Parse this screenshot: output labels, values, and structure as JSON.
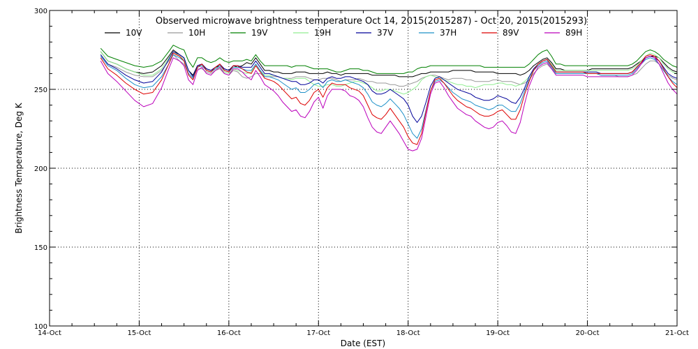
{
  "chart_data": {
    "type": "line",
    "title": "Observed microwave brightness temperature Oct 14, 2015(2015287) - Oct 20, 2015(2015293)",
    "xlabel": "Date (EST)",
    "ylabel": "Brightness Temperature, Deg K",
    "x_tick_labels": [
      "14-Oct",
      "15-Oct",
      "16-Oct",
      "17-Oct",
      "18-Oct",
      "19-Oct",
      "20-Oct",
      "21-Oct"
    ],
    "y_tick_labels": [
      "100",
      "150",
      "200",
      "250",
      "300"
    ],
    "xlim": [
      "2015-10-14",
      "2015-10-21"
    ],
    "ylim": [
      100,
      300
    ],
    "grid": true,
    "legend_position": "top",
    "x_unit": "days from 14-Oct",
    "x": [
      0.57,
      0.65,
      0.75,
      0.85,
      0.95,
      1.05,
      1.15,
      1.25,
      1.33,
      1.38,
      1.45,
      1.5,
      1.55,
      1.6,
      1.65,
      1.7,
      1.75,
      1.8,
      1.85,
      1.9,
      1.95,
      2.0,
      2.05,
      2.1,
      2.15,
      2.2,
      2.25,
      2.3,
      2.35,
      2.4,
      2.45,
      2.5,
      2.55,
      2.6,
      2.65,
      2.7,
      2.75,
      2.8,
      2.85,
      2.9,
      2.95,
      3.0,
      3.05,
      3.1,
      3.15,
      3.2,
      3.25,
      3.3,
      3.35,
      3.4,
      3.45,
      3.5,
      3.55,
      3.6,
      3.65,
      3.7,
      3.75,
      3.8,
      3.85,
      3.9,
      3.95,
      4.0,
      4.05,
      4.1,
      4.15,
      4.2,
      4.25,
      4.3,
      4.35,
      4.4,
      4.45,
      4.5,
      4.55,
      4.6,
      4.65,
      4.7,
      4.75,
      4.8,
      4.85,
      4.9,
      4.95,
      5.0,
      5.05,
      5.1,
      5.15,
      5.2,
      5.25,
      5.3,
      5.35,
      5.4,
      5.45,
      5.5,
      5.55,
      5.6,
      5.65,
      5.7,
      5.75,
      5.8,
      5.85,
      5.9,
      5.95,
      6.0,
      6.05,
      6.1,
      6.15,
      6.2,
      6.25,
      6.3,
      6.35,
      6.4,
      6.45,
      6.5,
      6.55,
      6.6,
      6.65,
      6.7,
      6.75,
      6.8,
      6.85,
      6.9,
      6.95,
      7.0
    ],
    "series": [
      {
        "name": "10V",
        "color": "#000000",
        "values": [
          274,
          268,
          266,
          263,
          261,
          260,
          261,
          265,
          271,
          275,
          272,
          270,
          262,
          259,
          265,
          266,
          263,
          262,
          264,
          265,
          263,
          262,
          265,
          264,
          265,
          267,
          266,
          270,
          266,
          262,
          262,
          261,
          261,
          260,
          260,
          260,
          261,
          261,
          261,
          260,
          260,
          260,
          260,
          261,
          260,
          260,
          259,
          260,
          260,
          260,
          260,
          260,
          260,
          259,
          259,
          259,
          259,
          259,
          259,
          258,
          258,
          258,
          258,
          259,
          260,
          260,
          261,
          261,
          261,
          261,
          261,
          262,
          262,
          262,
          262,
          262,
          261,
          261,
          261,
          261,
          261,
          260,
          260,
          260,
          260,
          260,
          259,
          260,
          262,
          265,
          267,
          269,
          270,
          267,
          263,
          263,
          262,
          262,
          262,
          262,
          262,
          262,
          263,
          263,
          263,
          263,
          263,
          263,
          263,
          263,
          263,
          264,
          266,
          268,
          270,
          271,
          271,
          270,
          267,
          264,
          262,
          261
        ]
      },
      {
        "name": "10H",
        "color": "#999999",
        "values": [
          272,
          266,
          264,
          261,
          259,
          258,
          258,
          262,
          268,
          272,
          268,
          266,
          260,
          257,
          263,
          263,
          261,
          260,
          262,
          263,
          260,
          259,
          262,
          261,
          258,
          257,
          258,
          260,
          260,
          258,
          258,
          258,
          258,
          257,
          257,
          257,
          258,
          258,
          258,
          257,
          256,
          256,
          257,
          257,
          257,
          256,
          255,
          256,
          256,
          256,
          257,
          256,
          255,
          255,
          254,
          254,
          254,
          253,
          253,
          252,
          252,
          253,
          254,
          255,
          257,
          258,
          259,
          259,
          258,
          257,
          256,
          257,
          257,
          257,
          256,
          256,
          255,
          255,
          255,
          255,
          256,
          256,
          255,
          255,
          255,
          254,
          253,
          254,
          256,
          260,
          263,
          265,
          266,
          263,
          260,
          260,
          260,
          260,
          260,
          260,
          260,
          260,
          260,
          260,
          259,
          259,
          259,
          259,
          258,
          258,
          258,
          259,
          260,
          263,
          266,
          268,
          268,
          266,
          262,
          259,
          257,
          256
        ]
      },
      {
        "name": "19V",
        "color": "#008000",
        "values": [
          276,
          271,
          269,
          267,
          265,
          264,
          265,
          268,
          274,
          278,
          276,
          275,
          268,
          264,
          270,
          270,
          268,
          267,
          268,
          270,
          268,
          267,
          268,
          268,
          268,
          269,
          268,
          272,
          268,
          265,
          265,
          265,
          265,
          265,
          265,
          264,
          265,
          265,
          265,
          264,
          263,
          263,
          263,
          263,
          262,
          261,
          261,
          262,
          263,
          263,
          263,
          262,
          262,
          261,
          260,
          260,
          260,
          260,
          260,
          260,
          260,
          261,
          261,
          263,
          264,
          264,
          265,
          265,
          265,
          265,
          265,
          265,
          265,
          265,
          265,
          265,
          265,
          265,
          264,
          264,
          264,
          264,
          264,
          264,
          264,
          264,
          264,
          264,
          266,
          269,
          272,
          274,
          275,
          271,
          266,
          266,
          265,
          265,
          265,
          265,
          265,
          265,
          265,
          265,
          265,
          265,
          265,
          265,
          265,
          265,
          265,
          266,
          268,
          271,
          274,
          275,
          274,
          272,
          269,
          267,
          265,
          264
        ]
      },
      {
        "name": "19H",
        "color": "#90ee90",
        "values": [
          274,
          268,
          266,
          263,
          261,
          259,
          259,
          263,
          270,
          274,
          271,
          269,
          262,
          258,
          264,
          265,
          262,
          261,
          263,
          264,
          261,
          260,
          263,
          262,
          261,
          260,
          261,
          266,
          262,
          259,
          259,
          259,
          258,
          257,
          257,
          256,
          257,
          257,
          257,
          255,
          253,
          252,
          252,
          253,
          253,
          252,
          252,
          253,
          254,
          255,
          255,
          254,
          253,
          251,
          249,
          249,
          250,
          250,
          249,
          248,
          247,
          248,
          250,
          252,
          256,
          258,
          259,
          258,
          257,
          256,
          255,
          254,
          253,
          253,
          252,
          252,
          251,
          252,
          253,
          253,
          253,
          254,
          254,
          253,
          253,
          252,
          253,
          255,
          258,
          262,
          265,
          268,
          269,
          266,
          262,
          262,
          262,
          262,
          262,
          262,
          262,
          262,
          262,
          262,
          262,
          262,
          262,
          262,
          262,
          262,
          262,
          263,
          265,
          268,
          271,
          273,
          272,
          270,
          266,
          263,
          261,
          260
        ]
      },
      {
        "name": "37V",
        "color": "#000099",
        "values": [
          272,
          266,
          263,
          259,
          256,
          254,
          255,
          261,
          269,
          274,
          272,
          270,
          262,
          258,
          265,
          266,
          263,
          262,
          264,
          266,
          263,
          262,
          265,
          265,
          264,
          264,
          264,
          268,
          264,
          260,
          260,
          259,
          258,
          257,
          256,
          255,
          255,
          253,
          253,
          254,
          256,
          256,
          254,
          257,
          258,
          257,
          257,
          258,
          258,
          257,
          256,
          255,
          253,
          249,
          247,
          247,
          248,
          250,
          248,
          246,
          244,
          240,
          233,
          229,
          233,
          242,
          252,
          257,
          258,
          256,
          254,
          252,
          250,
          249,
          248,
          247,
          245,
          244,
          243,
          243,
          244,
          246,
          245,
          244,
          242,
          241,
          245,
          251,
          258,
          263,
          266,
          268,
          269,
          265,
          261,
          261,
          261,
          261,
          261,
          261,
          261,
          261,
          261,
          261,
          260,
          260,
          260,
          260,
          260,
          260,
          260,
          261,
          264,
          267,
          270,
          271,
          270,
          268,
          264,
          260,
          258,
          257
        ]
      },
      {
        "name": "37H",
        "color": "#1e90c8",
        "values": [
          271,
          265,
          262,
          257,
          253,
          251,
          252,
          258,
          266,
          272,
          270,
          268,
          260,
          257,
          264,
          265,
          262,
          261,
          263,
          265,
          262,
          261,
          264,
          264,
          263,
          262,
          262,
          266,
          262,
          258,
          258,
          257,
          256,
          254,
          252,
          250,
          251,
          248,
          248,
          250,
          253,
          254,
          251,
          255,
          256,
          255,
          255,
          256,
          255,
          254,
          253,
          251,
          247,
          242,
          240,
          239,
          241,
          244,
          241,
          238,
          234,
          228,
          222,
          219,
          225,
          237,
          249,
          255,
          256,
          254,
          251,
          248,
          246,
          244,
          243,
          242,
          240,
          239,
          238,
          237,
          238,
          240,
          240,
          238,
          236,
          236,
          241,
          249,
          256,
          262,
          265,
          267,
          268,
          264,
          260,
          260,
          260,
          260,
          260,
          260,
          260,
          260,
          260,
          260,
          259,
          259,
          259,
          259,
          259,
          259,
          259,
          260,
          263,
          266,
          269,
          270,
          269,
          266,
          262,
          258,
          255,
          253
        ]
      },
      {
        "name": "89V",
        "color": "#dd0000",
        "values": [
          270,
          263,
          259,
          254,
          250,
          247,
          248,
          256,
          266,
          273,
          271,
          268,
          259,
          256,
          264,
          266,
          262,
          261,
          264,
          266,
          262,
          261,
          265,
          265,
          263,
          261,
          260,
          265,
          261,
          257,
          256,
          255,
          253,
          250,
          247,
          244,
          245,
          241,
          240,
          243,
          248,
          250,
          245,
          251,
          254,
          253,
          253,
          253,
          251,
          250,
          249,
          246,
          240,
          234,
          232,
          231,
          234,
          238,
          234,
          230,
          226,
          220,
          216,
          215,
          222,
          236,
          249,
          256,
          257,
          254,
          250,
          246,
          243,
          241,
          239,
          238,
          236,
          234,
          233,
          233,
          234,
          236,
          237,
          234,
          231,
          231,
          237,
          247,
          255,
          262,
          266,
          268,
          269,
          265,
          261,
          261,
          261,
          261,
          261,
          261,
          261,
          260,
          260,
          260,
          260,
          260,
          260,
          260,
          260,
          260,
          260,
          261,
          264,
          267,
          271,
          272,
          271,
          268,
          263,
          258,
          254,
          251
        ]
      },
      {
        "name": "89H",
        "color": "#bb00bb",
        "values": [
          268,
          260,
          255,
          249,
          243,
          239,
          241,
          251,
          263,
          270,
          268,
          265,
          256,
          253,
          262,
          264,
          260,
          259,
          262,
          264,
          260,
          259,
          263,
          263,
          261,
          258,
          256,
          262,
          258,
          253,
          251,
          249,
          246,
          242,
          239,
          236,
          237,
          233,
          232,
          236,
          242,
          245,
          238,
          246,
          250,
          250,
          250,
          249,
          246,
          245,
          243,
          239,
          232,
          226,
          223,
          222,
          226,
          230,
          226,
          222,
          217,
          212,
          211,
          212,
          219,
          233,
          247,
          254,
          255,
          251,
          246,
          242,
          238,
          236,
          234,
          233,
          230,
          228,
          226,
          225,
          226,
          229,
          230,
          227,
          223,
          222,
          229,
          241,
          252,
          259,
          264,
          266,
          267,
          263,
          259,
          259,
          259,
          259,
          259,
          259,
          259,
          258,
          258,
          258,
          258,
          258,
          258,
          258,
          258,
          258,
          258,
          259,
          262,
          266,
          270,
          271,
          270,
          266,
          260,
          254,
          250,
          247
        ]
      }
    ]
  }
}
